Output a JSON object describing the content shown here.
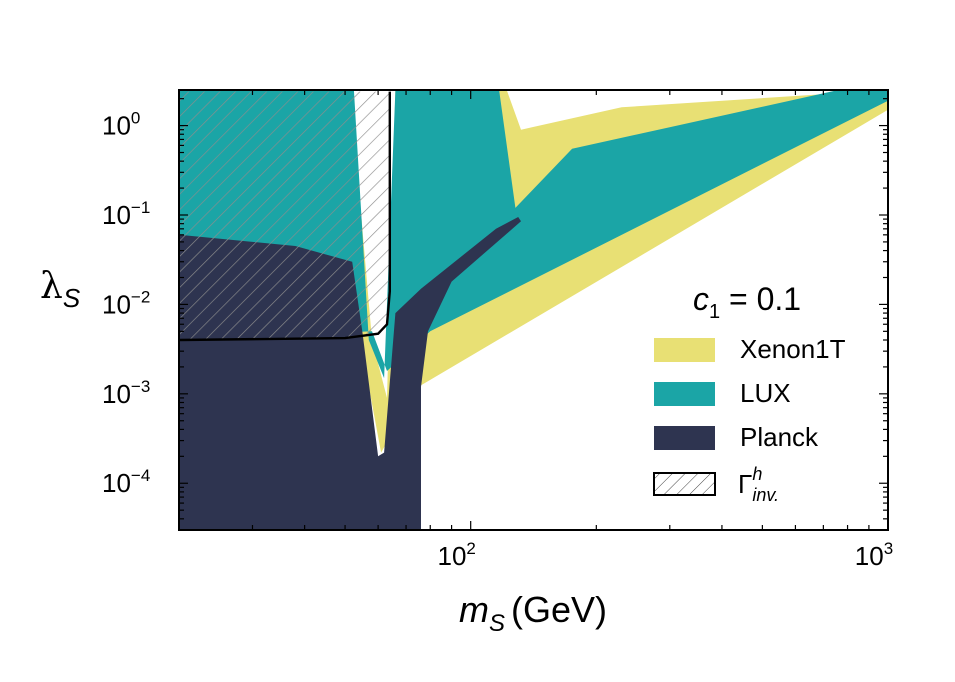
{
  "chart_data": {
    "type": "area",
    "title": "",
    "annotation": {
      "prefix": "c",
      "subscript": "1",
      "text": " = 0.1"
    },
    "xlabel": {
      "main": "m",
      "sub": "S",
      "unit": "(GeV)"
    },
    "ylabel": {
      "main": "λ",
      "sub": "S"
    },
    "xscale": "log",
    "yscale": "log",
    "xlim": [
      20,
      1000
    ],
    "ylim": [
      3e-05,
      2.5
    ],
    "x_ticks": [
      {
        "base": "10",
        "exp": "2",
        "value": 100
      },
      {
        "base": "10",
        "exp": "3",
        "value": 1000
      }
    ],
    "y_ticks": [
      {
        "base": "10",
        "exp": "0",
        "value": 1
      },
      {
        "base": "10",
        "exp": "−1",
        "value": 0.1
      },
      {
        "base": "10",
        "exp": "−2",
        "value": 0.01
      },
      {
        "base": "10",
        "exp": "−3",
        "value": 0.001
      },
      {
        "base": "10",
        "exp": "−4",
        "value": 0.0001
      }
    ],
    "legend_position": "lower-right",
    "series": [
      {
        "name": "Xenon1T",
        "color": "#e8e074",
        "region": [
          [
            20,
            2.5
          ],
          [
            51.5,
            2.5
          ],
          [
            58,
            0.004
          ],
          [
            63,
            0.0009
          ],
          [
            66,
            2.5
          ],
          [
            122,
            2.5
          ],
          [
            132,
            0.9
          ],
          [
            230,
            1.6
          ],
          [
            1000,
            2.5
          ],
          [
            1000,
            1.5
          ],
          [
            75,
            0.0012
          ],
          [
            61,
            0.00022
          ],
          [
            57,
            0.0012
          ],
          [
            49,
            0.004
          ],
          [
            20,
            0.004
          ]
        ]
      },
      {
        "name": "LUX",
        "color": "#1ba5a6",
        "region": [
          [
            20,
            2.5
          ],
          [
            52.5,
            2.5
          ],
          [
            57,
            0.004
          ],
          [
            62,
            0.0015
          ],
          [
            66,
            2.5
          ],
          [
            117,
            2.5
          ],
          [
            128,
            0.12
          ],
          [
            175,
            0.55
          ],
          [
            760,
            2.5
          ],
          [
            1000,
            2.5
          ],
          [
            1000,
            1.9
          ],
          [
            80,
            0.005
          ],
          [
            63,
            0.0018
          ],
          [
            58,
            0.005
          ],
          [
            20,
            0.004
          ]
        ]
      },
      {
        "name": "Planck",
        "color": "#2e3450",
        "region": [
          [
            20,
            0.06
          ],
          [
            38,
            0.045
          ],
          [
            52,
            0.03
          ],
          [
            55,
            0.005
          ],
          [
            60,
            0.0002
          ],
          [
            62,
            0.00022
          ],
          [
            66,
            0.008
          ],
          [
            76,
            0.015
          ],
          [
            115,
            0.07
          ],
          [
            130,
            0.095
          ],
          [
            132,
            0.085
          ],
          [
            90,
            0.018
          ],
          [
            79,
            0.005
          ],
          [
            76,
            0.0012
          ],
          [
            76,
            3e-05
          ],
          [
            20,
            3e-05
          ]
        ]
      },
      {
        "name": "Γinv",
        "hatched": true,
        "boundary": [
          [
            20,
            0.004
          ],
          [
            50,
            0.0042
          ],
          [
            60,
            0.0047
          ],
          [
            63,
            0.006
          ],
          [
            64,
            0.014
          ],
          [
            64,
            2.4
          ],
          [
            20,
            2.4
          ]
        ]
      }
    ]
  },
  "legend": [
    {
      "label": "Xenon1T",
      "color": "#e8e074",
      "name": "legend-xenon1t"
    },
    {
      "label": "LUX",
      "color": "#1ba5a6",
      "name": "legend-lux"
    },
    {
      "label": "Planck",
      "color": "#2e3450",
      "name": "legend-planck"
    }
  ],
  "legend_hatch": {
    "main": "Γ",
    "sup": "h",
    "sub": "inv."
  }
}
